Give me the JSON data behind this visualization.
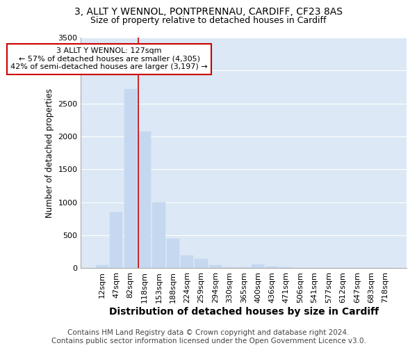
{
  "title": "3, ALLT Y WENNOL, PONTPRENNAU, CARDIFF, CF23 8AS",
  "subtitle": "Size of property relative to detached houses in Cardiff",
  "xlabel": "Distribution of detached houses by size in Cardiff",
  "ylabel": "Number of detached properties",
  "footer_line1": "Contains HM Land Registry data © Crown copyright and database right 2024.",
  "footer_line2": "Contains public sector information licensed under the Open Government Licence v3.0.",
  "categories": [
    "12sqm",
    "47sqm",
    "82sqm",
    "118sqm",
    "153sqm",
    "188sqm",
    "224sqm",
    "259sqm",
    "294sqm",
    "330sqm",
    "365sqm",
    "400sqm",
    "436sqm",
    "471sqm",
    "506sqm",
    "541sqm",
    "577sqm",
    "612sqm",
    "647sqm",
    "683sqm",
    "718sqm"
  ],
  "values": [
    50,
    850,
    2720,
    2070,
    1000,
    450,
    200,
    140,
    50,
    20,
    15,
    60,
    30,
    20,
    10,
    5,
    3,
    3,
    2,
    2,
    2
  ],
  "bar_color": "#c5d8f0",
  "bar_edge_color": "#c5d8f0",
  "vline_x_index": 3,
  "annotation_text_line1": "3 ALLT Y WENNOL: 127sqm",
  "annotation_text_line2": "← 57% of detached houses are smaller (4,305)",
  "annotation_text_line3": "42% of semi-detached houses are larger (3,197) →",
  "annotation_box_edge_color": "#cc0000",
  "vline_color": "#cc0000",
  "ylim": [
    0,
    3500
  ],
  "background_color": "#ffffff",
  "plot_bg_color": "#dce8f5",
  "grid_color": "#ffffff",
  "title_fontsize": 10,
  "subtitle_fontsize": 9,
  "tick_fontsize": 8,
  "ylabel_fontsize": 8.5,
  "xlabel_fontsize": 10,
  "footer_fontsize": 7.5
}
